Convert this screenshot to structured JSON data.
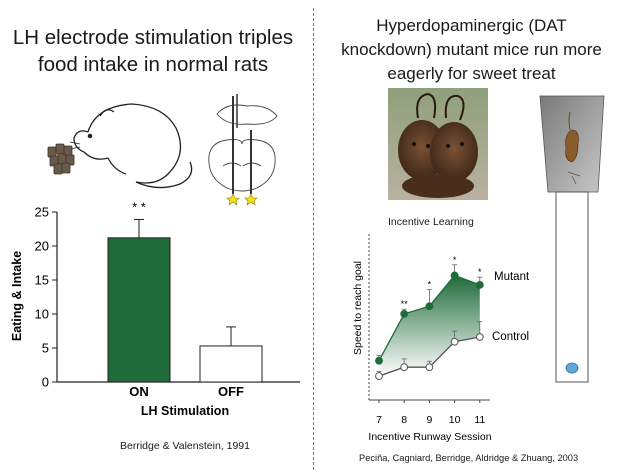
{
  "left_panel": {
    "title_line1": "LH electrode stimulation triples",
    "title_line2": "food intake in normal rats",
    "citation": "Berridge & Valenstein, 1991"
  },
  "right_panel": {
    "title_line1": "Hyperdopaminergic (DAT",
    "title_line2": "knockdown) mutant mice run more",
    "title_line3": "eagerly for sweet treat",
    "photo_caption": "Incentive Learning",
    "citation": "Peciña, Cagniard, Berridge, Aldridge & Zhuang, 2003"
  },
  "chart_data": [
    {
      "type": "bar",
      "title": "",
      "categories": [
        "ON",
        "OFF"
      ],
      "values": [
        21.2,
        5.3
      ],
      "error": [
        2.7,
        2.8
      ],
      "colors": [
        "#1f6b3a",
        "#ffffff"
      ],
      "xlabel": "LH Stimulation",
      "ylabel": "Eating & Intake",
      "ylim": [
        0,
        25
      ],
      "yticks": [
        0,
        5,
        10,
        15,
        20,
        25
      ],
      "annotations": [
        {
          "category": "ON",
          "text": "* *"
        }
      ],
      "grid": false
    },
    {
      "type": "line",
      "title": "",
      "x": [
        7,
        8,
        9,
        10,
        11
      ],
      "series": [
        {
          "name": "Mutant",
          "values": [
            2.6,
            10.5,
            11.8,
            17.0,
            15.4
          ],
          "error": [
            0.9,
            0.8,
            2.8,
            1.8,
            1.3
          ],
          "color": "#1f6b3a",
          "marker": "filled"
        },
        {
          "name": "Control",
          "values": [
            0.0,
            1.5,
            1.5,
            5.8,
            6.6
          ],
          "error": [
            0.8,
            1.4,
            1.0,
            1.8,
            2.6
          ],
          "color": "#555555",
          "marker": "open"
        }
      ],
      "xlabel": "Incentive Runway Session",
      "ylabel": "Speed to reach goal",
      "ylim": [
        -1,
        24
      ],
      "annotations": [
        {
          "x": 8,
          "text": "**"
        },
        {
          "x": 9,
          "text": "*"
        },
        {
          "x": 10,
          "text": "*"
        },
        {
          "x": 11,
          "text": "*"
        }
      ],
      "area_fill": "gradient from green (top) to white",
      "legend": "labels beside the last points",
      "grid": false
    }
  ],
  "icons": {
    "rat": "rat-eating-drawing-icon",
    "brain": "brain-electrode-diagram-icon",
    "mice": "mice-photo-icon",
    "runway": "runway-apparatus-icon"
  }
}
